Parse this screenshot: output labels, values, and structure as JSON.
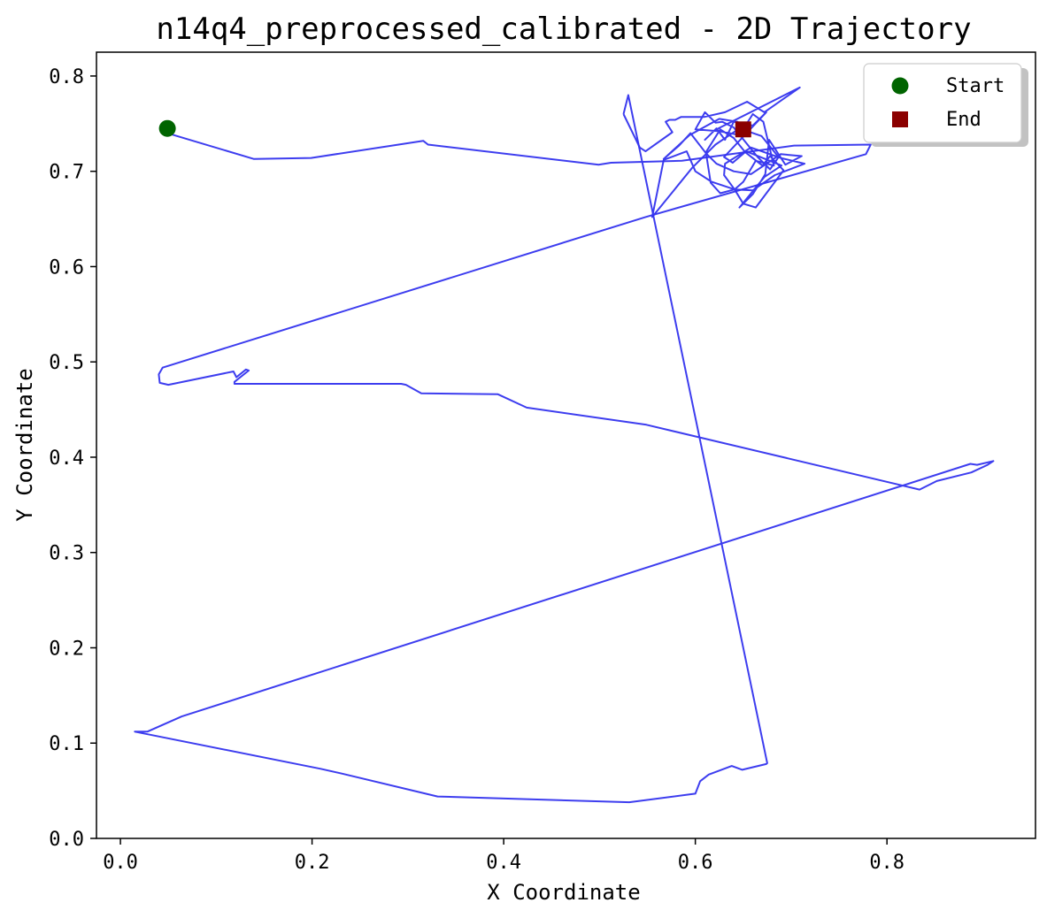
{
  "chart_data": {
    "type": "line",
    "title": "n14q4_preprocessed_calibrated - 2D Trajectory",
    "xlabel": "X Coordinate",
    "ylabel": "Y Coordinate",
    "xlim": [
      -0.025,
      0.955
    ],
    "ylim": [
      0.0,
      0.825
    ],
    "xticks": [
      0.0,
      0.2,
      0.4,
      0.6,
      0.8
    ],
    "yticks": [
      0.0,
      0.1,
      0.2,
      0.3,
      0.4,
      0.5,
      0.6,
      0.7,
      0.8
    ],
    "xtick_labels": [
      "0.0",
      "0.2",
      "0.4",
      "0.6",
      "0.8"
    ],
    "ytick_labels": [
      "0.0",
      "0.1",
      "0.2",
      "0.3",
      "0.4",
      "0.5",
      "0.6",
      "0.7",
      "0.8"
    ],
    "grid": false,
    "legend_position": "top-right",
    "line_color": "#3333ee",
    "series": [
      {
        "x": [
          0.049,
          0.139,
          0.199,
          0.316,
          0.321,
          0.499,
          0.512,
          0.586,
          0.703,
          0.783,
          0.778,
          0.548,
          0.044,
          0.04,
          0.041,
          0.05,
          0.118,
          0.121,
          0.131,
          0.134,
          0.119,
          0.119,
          0.293,
          0.298,
          0.314,
          0.394,
          0.424,
          0.549,
          0.834,
          0.852,
          0.888,
          0.905,
          0.911,
          0.894,
          0.887,
          0.064,
          0.028,
          0.015,
          0.209,
          0.231,
          0.331,
          0.531,
          0.6,
          0.605,
          0.614,
          0.638,
          0.649,
          0.674,
          0.675,
          0.53,
          0.525
        ],
        "y": [
          0.74,
          0.713,
          0.714,
          0.732,
          0.728,
          0.707,
          0.709,
          0.711,
          0.727,
          0.728,
          0.718,
          0.652,
          0.494,
          0.487,
          0.478,
          0.476,
          0.49,
          0.484,
          0.492,
          0.491,
          0.479,
          0.477,
          0.477,
          0.476,
          0.467,
          0.466,
          0.452,
          0.434,
          0.366,
          0.375,
          0.384,
          0.392,
          0.396,
          0.392,
          0.393,
          0.128,
          0.112,
          0.112,
          0.073,
          0.068,
          0.044,
          0.038,
          0.047,
          0.06,
          0.067,
          0.076,
          0.072,
          0.078,
          0.079,
          0.78,
          0.76
        ]
      },
      {
        "x": [
          0.525,
          0.542,
          0.548,
          0.576,
          0.569,
          0.573,
          0.579,
          0.585,
          0.609,
          0.631,
          0.654,
          0.672,
          0.709,
          0.62,
          0.61,
          0.622,
          0.631,
          0.64,
          0.66,
          0.674,
          0.63,
          0.639,
          0.653,
          0.69,
          0.672,
          0.646,
          0.66,
          0.673,
          0.677,
          0.694,
          0.711,
          0.689,
          0.678,
          0.665,
          0.652,
          0.64,
          0.628,
          0.621,
          0.61,
          0.6,
          0.625,
          0.646,
          0.66,
          0.671,
          0.682,
          0.663,
          0.65,
          0.641,
          0.63,
          0.631,
          0.658,
          0.689,
          0.714,
          0.683,
          0.66,
          0.641,
          0.626,
          0.616,
          0.611,
          0.626,
          0.64,
          0.652,
          0.67,
          0.678,
          0.692,
          0.663,
          0.65,
          0.641,
          0.617,
          0.6,
          0.591,
          0.567,
          0.555,
          0.597,
          0.621,
          0.646,
          0.669,
          0.686,
          0.658,
          0.64,
          0.622,
          0.611,
          0.595,
          0.583,
          0.567,
          0.594,
          0.625,
          0.644,
          0.651
        ],
        "y": [
          0.76,
          0.725,
          0.721,
          0.741,
          0.752,
          0.754,
          0.754,
          0.757,
          0.757,
          0.762,
          0.773,
          0.762,
          0.788,
          0.743,
          0.733,
          0.745,
          0.733,
          0.752,
          0.748,
          0.762,
          0.715,
          0.709,
          0.721,
          0.706,
          0.694,
          0.662,
          0.676,
          0.697,
          0.733,
          0.707,
          0.716,
          0.718,
          0.702,
          0.715,
          0.731,
          0.746,
          0.752,
          0.751,
          0.762,
          0.744,
          0.742,
          0.738,
          0.76,
          0.752,
          0.706,
          0.711,
          0.689,
          0.681,
          0.696,
          0.708,
          0.725,
          0.714,
          0.708,
          0.696,
          0.68,
          0.681,
          0.677,
          0.688,
          0.72,
          0.744,
          0.735,
          0.72,
          0.706,
          0.716,
          0.701,
          0.662,
          0.666,
          0.681,
          0.689,
          0.7,
          0.721,
          0.712,
          0.652,
          0.704,
          0.728,
          0.745,
          0.737,
          0.716,
          0.697,
          0.7,
          0.708,
          0.719,
          0.74,
          0.727,
          0.713,
          0.738,
          0.755,
          0.752,
          0.745
        ]
      }
    ],
    "markers": [
      {
        "label": "Start",
        "x": 0.049,
        "y": 0.745,
        "shape": "circle",
        "color": "#006400"
      },
      {
        "label": "End",
        "x": 0.65,
        "y": 0.744,
        "shape": "square",
        "color": "#8b0000"
      }
    ]
  }
}
